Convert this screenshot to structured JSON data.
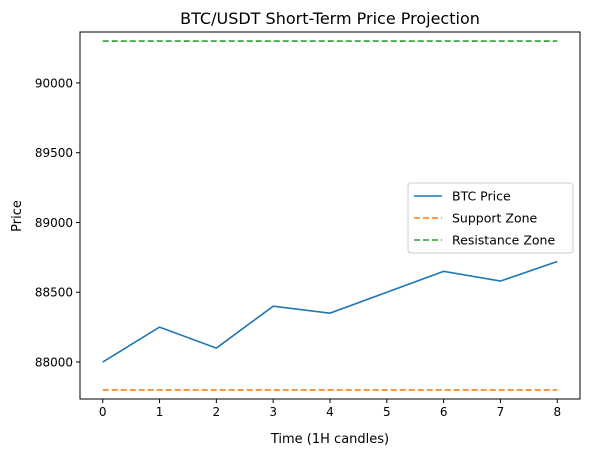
{
  "chart_data": {
    "type": "line",
    "title": "BTC/USDT Short-Term Price Projection",
    "xlabel": "Time (1H candles)",
    "ylabel": "Price",
    "x": [
      0,
      1,
      2,
      3,
      4,
      5,
      6,
      7,
      8
    ],
    "xlim": [
      -0.4,
      8.4
    ],
    "ylim": [
      87735,
      90365
    ],
    "xticks": [
      0,
      1,
      2,
      3,
      4,
      5,
      6,
      7,
      8
    ],
    "yticks": [
      88000,
      88500,
      89000,
      89500,
      90000
    ],
    "grid": false,
    "legend_position": "center-right",
    "series": [
      {
        "name": "BTC Price",
        "values": [
          88000,
          88250,
          88100,
          88400,
          88350,
          88500,
          88650,
          88580,
          88720
        ],
        "color": "#1f77b4",
        "style": "solid"
      },
      {
        "name": "Support Zone",
        "values": [
          87800,
          87800,
          87800,
          87800,
          87800,
          87800,
          87800,
          87800,
          87800
        ],
        "color": "#ff7f0e",
        "style": "dashed"
      },
      {
        "name": "Resistance Zone",
        "values": [
          90300,
          90300,
          90300,
          90300,
          90300,
          90300,
          90300,
          90300,
          90300
        ],
        "color": "#2ca02c",
        "style": "dashed"
      }
    ]
  }
}
